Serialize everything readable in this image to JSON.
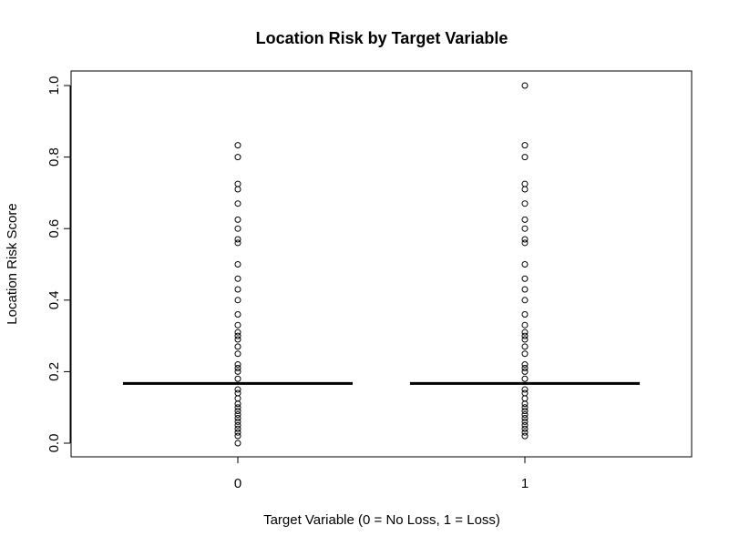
{
  "chart_data": {
    "type": "boxplot",
    "title": "Location Risk by Target Variable",
    "xlabel": "Target Variable (0 = No Loss, 1 = Loss)",
    "ylabel": "Location Risk Score",
    "ylim": [
      0,
      1
    ],
    "yticks": [
      "0.0",
      "0.2",
      "0.4",
      "0.6",
      "0.8",
      "1.0"
    ],
    "ytick_values": [
      0,
      0.2,
      0.4,
      0.6,
      0.8,
      1.0
    ],
    "grid": false,
    "categories": [
      "0",
      "1"
    ],
    "groups": [
      {
        "category": "0",
        "median": 0.167,
        "q1": 0.167,
        "q3": 0.167,
        "whisker_low": 0.167,
        "whisker_high": 0.167,
        "outliers": [
          0.0,
          0.02,
          0.03,
          0.04,
          0.05,
          0.06,
          0.07,
          0.08,
          0.09,
          0.1,
          0.11,
          0.125,
          0.14,
          0.15,
          0.18,
          0.2,
          0.21,
          0.22,
          0.25,
          0.27,
          0.29,
          0.3,
          0.31,
          0.33,
          0.36,
          0.4,
          0.43,
          0.46,
          0.5,
          0.56,
          0.57,
          0.6,
          0.625,
          0.67,
          0.71,
          0.725,
          0.8,
          0.833
        ]
      },
      {
        "category": "1",
        "median": 0.167,
        "q1": 0.167,
        "q3": 0.167,
        "whisker_low": 0.167,
        "whisker_high": 0.167,
        "outliers": [
          0.02,
          0.03,
          0.04,
          0.05,
          0.06,
          0.07,
          0.08,
          0.09,
          0.1,
          0.11,
          0.125,
          0.14,
          0.15,
          0.18,
          0.2,
          0.21,
          0.22,
          0.25,
          0.27,
          0.29,
          0.3,
          0.31,
          0.33,
          0.36,
          0.4,
          0.43,
          0.46,
          0.5,
          0.56,
          0.57,
          0.6,
          0.625,
          0.67,
          0.71,
          0.725,
          0.8,
          0.833,
          1.0
        ]
      }
    ]
  }
}
